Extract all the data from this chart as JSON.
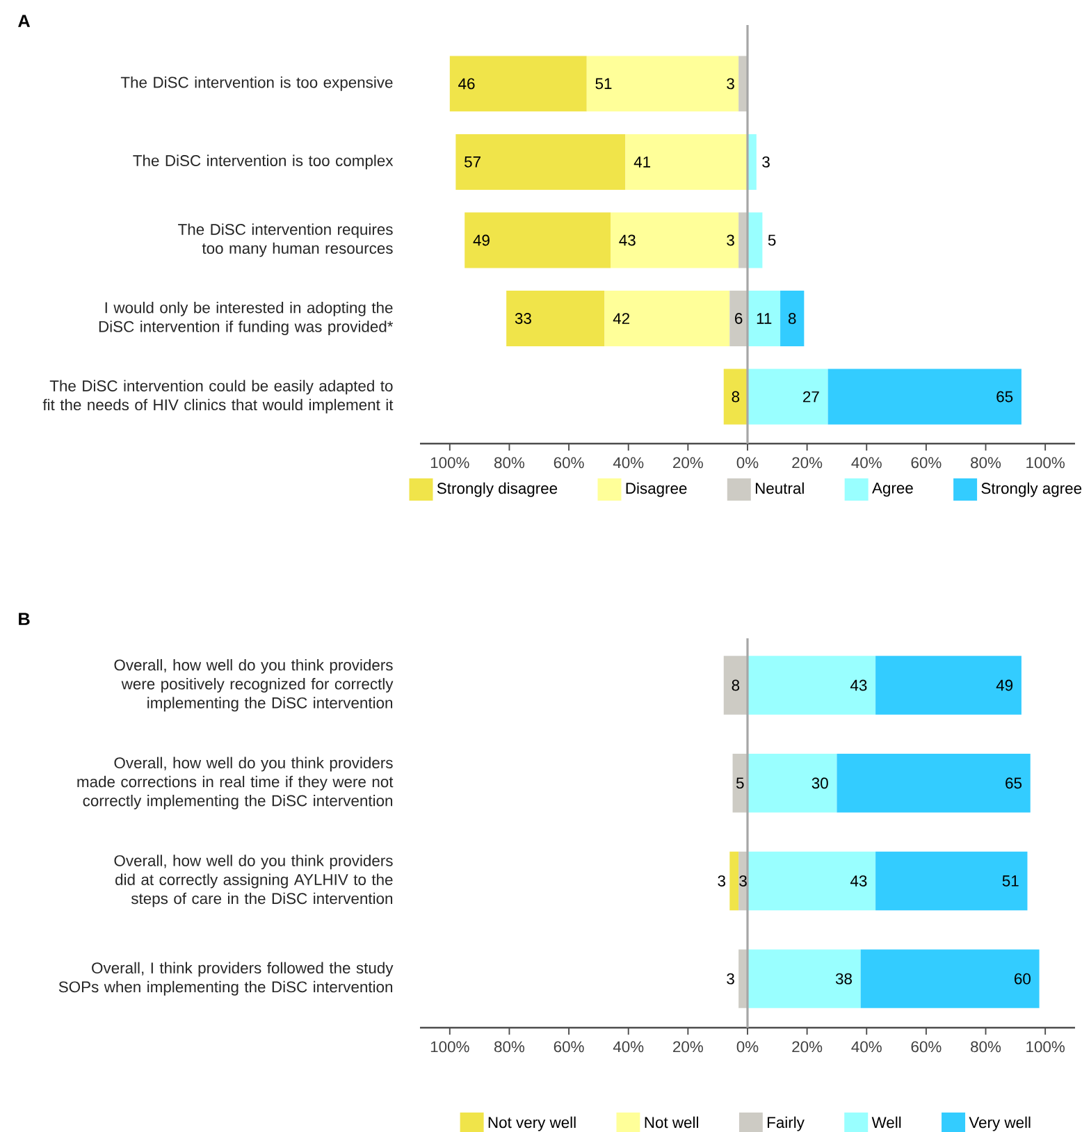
{
  "chart_data": [
    {
      "type": "bar",
      "orientation": "horizontal",
      "title": "A",
      "categories": [
        "The DiSC intervention is too expensive",
        "The DiSC intervention is too complex",
        "The DiSC intervention requires too many human resources",
        "I would only be interested in adopting the DiSC intervention if funding was provided*",
        "The DiSC intervention could be easily adapted to fit the needs of HIV clinics that would implement it"
      ],
      "series": [
        {
          "name": "Strongly disagree",
          "color": "#f0e44a",
          "values": [
            46,
            57,
            49,
            33,
            8
          ],
          "base": [
            -100,
            -98,
            -95,
            -81,
            -8
          ]
        },
        {
          "name": "Disagree",
          "color": "#ffff99",
          "values": [
            51,
            41,
            43,
            42,
            null
          ],
          "base": [
            -54,
            -41,
            -46,
            -48,
            null
          ]
        },
        {
          "name": "Neutral",
          "color": "#cdcbc4",
          "values": [
            3,
            null,
            3,
            6,
            null
          ],
          "base": [
            -3,
            null,
            -3,
            -6,
            null
          ]
        },
        {
          "name": "Agree",
          "color": "#99ffff",
          "values": [
            null,
            3,
            5,
            11,
            27
          ],
          "base": [
            null,
            0,
            0,
            0,
            0
          ]
        },
        {
          "name": "Strongly agree",
          "color": "#33ccff",
          "values": [
            null,
            null,
            null,
            8,
            65
          ],
          "base": [
            null,
            null,
            null,
            11,
            27
          ]
        }
      ],
      "xlim": [
        -110,
        110
      ],
      "xticks": [
        {
          "value": -100,
          "label": "100%"
        },
        {
          "value": -80,
          "label": "80%"
        },
        {
          "value": -60,
          "label": "60%"
        },
        {
          "value": -40,
          "label": "40%"
        },
        {
          "value": -20,
          "label": "20%"
        },
        {
          "value": 0,
          "label": "0%"
        },
        {
          "value": 20,
          "label": "20%"
        },
        {
          "value": 40,
          "label": "40%"
        },
        {
          "value": 60,
          "label": "60%"
        },
        {
          "value": 80,
          "label": "80%"
        },
        {
          "value": 100,
          "label": "100%"
        }
      ],
      "ref_lines": [
        {
          "axis": "x",
          "value": 0,
          "color": "#a6a6a6"
        }
      ],
      "data_labels": true,
      "legend": "bottom"
    },
    {
      "type": "bar",
      "orientation": "horizontal",
      "title": "B",
      "categories": [
        "Overall, how well do you think providers were positively recognized for correctly implementing the DiSC intervention",
        "Overall, how well do you think providers made corrections in real time if they were not correctly implementing the DiSC intervention",
        "Overall, how well do you think providers did at correctly assigning AYLHIV to the steps of care in the DiSC intervention",
        "Overall, I think providers followed the study SOPs when implementing the DiSC intervention"
      ],
      "series": [
        {
          "name": "Not very well",
          "color": "#f0e44a",
          "values": [
            null,
            null,
            3,
            null
          ],
          "base": [
            null,
            null,
            -6,
            null
          ]
        },
        {
          "name": "Not well",
          "color": "#ffff99",
          "values": [
            null,
            null,
            null,
            null
          ],
          "base": [
            null,
            null,
            null,
            null
          ]
        },
        {
          "name": "Fairly",
          "color": "#cdcbc4",
          "values": [
            8,
            5,
            3,
            3
          ],
          "base": [
            -8,
            -5,
            -3,
            -3
          ]
        },
        {
          "name": "Well",
          "color": "#99ffff",
          "values": [
            43,
            30,
            43,
            38
          ],
          "base": [
            0,
            0,
            0,
            0
          ]
        },
        {
          "name": "Very well",
          "color": "#33ccff",
          "values": [
            49,
            65,
            51,
            60
          ],
          "base": [
            43,
            30,
            43,
            38
          ]
        }
      ],
      "xlim": [
        -110,
        110
      ],
      "xticks": [
        {
          "value": -100,
          "label": "100%"
        },
        {
          "value": -80,
          "label": "80%"
        },
        {
          "value": -60,
          "label": "60%"
        },
        {
          "value": -40,
          "label": "40%"
        },
        {
          "value": -20,
          "label": "20%"
        },
        {
          "value": 0,
          "label": "0%"
        },
        {
          "value": 20,
          "label": "20%"
        },
        {
          "value": 40,
          "label": "40%"
        },
        {
          "value": 60,
          "label": "60%"
        },
        {
          "value": 80,
          "label": "80%"
        },
        {
          "value": 100,
          "label": "100%"
        }
      ],
      "ref_lines": [
        {
          "axis": "x",
          "value": 0,
          "color": "#a6a6a6"
        }
      ],
      "data_labels": true,
      "legend": "bottom"
    }
  ]
}
